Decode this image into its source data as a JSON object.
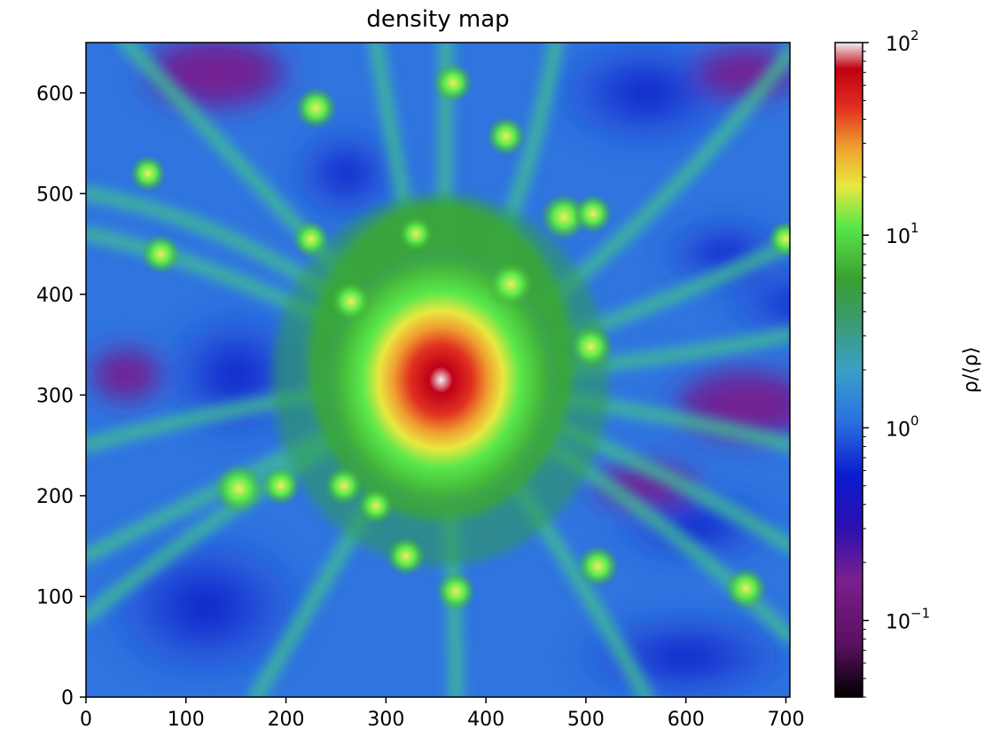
{
  "chart_data": {
    "type": "heatmap",
    "title": "density map",
    "xlabel": "",
    "ylabel": "",
    "xlim": [
      0,
      704
    ],
    "ylim": [
      0,
      650
    ],
    "xticks": [
      0,
      100,
      200,
      300,
      400,
      500,
      600,
      700
    ],
    "xtick_labels": [
      "0",
      "100",
      "200",
      "300",
      "400",
      "500",
      "600",
      "700"
    ],
    "yticks": [
      0,
      100,
      200,
      300,
      400,
      500,
      600
    ],
    "ytick_labels": [
      "0",
      "100",
      "200",
      "300",
      "400",
      "500",
      "600"
    ],
    "colorbar": {
      "label": "ρ/⟨ρ⟩",
      "scale": "log",
      "range": [
        0.04,
        100
      ],
      "tick_values": [
        0.1,
        1,
        10,
        100
      ],
      "tick_labels": [
        {
          "base": "10",
          "exp": "−1"
        },
        {
          "base": "10",
          "exp": "0"
        },
        {
          "base": "10",
          "exp": "1"
        },
        {
          "base": "10",
          "exp": "2"
        }
      ],
      "colormap": [
        "#000000",
        "#7a1f8f",
        "#0a1cd0",
        "#2a70e0",
        "#3aa0c8",
        "#3a9a6a",
        "#3aa030",
        "#5ae84a",
        "#e8e840",
        "#f0a030",
        "#e03020",
        "#c00010",
        "#f0f0f0"
      ]
    },
    "features": {
      "central_peak": {
        "x": 355,
        "y": 315,
        "value": 100
      },
      "halos": [
        {
          "x": 62,
          "y": 520,
          "value": 3
        },
        {
          "x": 225,
          "y": 455,
          "value": 3
        },
        {
          "x": 230,
          "y": 585,
          "value": 5
        },
        {
          "x": 265,
          "y": 393,
          "value": 5
        },
        {
          "x": 330,
          "y": 460,
          "value": 3
        },
        {
          "x": 367,
          "y": 610,
          "value": 4
        },
        {
          "x": 420,
          "y": 557,
          "value": 4
        },
        {
          "x": 425,
          "y": 410,
          "value": 8
        },
        {
          "x": 478,
          "y": 477,
          "value": 8
        },
        {
          "x": 505,
          "y": 348,
          "value": 6
        },
        {
          "x": 507,
          "y": 480,
          "value": 4
        },
        {
          "x": 153,
          "y": 207,
          "value": 10
        },
        {
          "x": 195,
          "y": 210,
          "value": 4
        },
        {
          "x": 258,
          "y": 210,
          "value": 4
        },
        {
          "x": 290,
          "y": 190,
          "value": 3
        },
        {
          "x": 320,
          "y": 140,
          "value": 4
        },
        {
          "x": 370,
          "y": 105,
          "value": 4
        },
        {
          "x": 512,
          "y": 130,
          "value": 5
        },
        {
          "x": 660,
          "y": 108,
          "value": 5
        },
        {
          "x": 700,
          "y": 455,
          "value": 3
        },
        {
          "x": 75,
          "y": 440,
          "value": 4
        }
      ]
    }
  }
}
